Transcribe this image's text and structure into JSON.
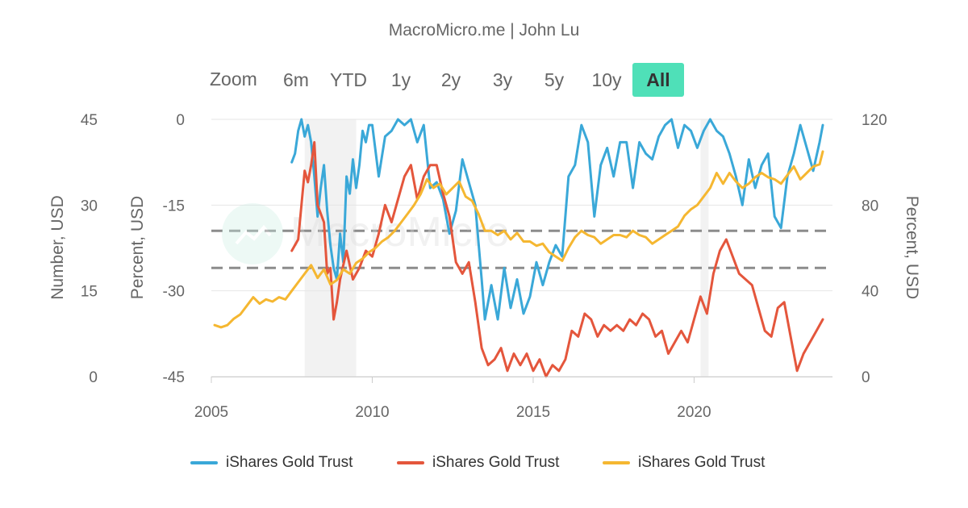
{
  "subtitle": "MacroMicro.me | John Lu",
  "watermark": "MacroMicro",
  "range_selector": {
    "label": "Zoom",
    "buttons": [
      "6m",
      "YTD",
      "1y",
      "2y",
      "3y",
      "5y",
      "10y",
      "All"
    ],
    "selected": "All"
  },
  "colors": {
    "series_blue": "#3aa8d8",
    "series_red": "#e4563c",
    "series_yellow": "#f5b731",
    "selected_button": "#4fe0b8",
    "recession_band": "#f2f2f2",
    "reference_line": "#8c8c8c"
  },
  "chart_data": {
    "type": "line",
    "x_ticks": [
      "2005",
      "2010",
      "2015",
      "2020"
    ],
    "xlim": [
      2005,
      2024.3
    ],
    "axes": {
      "left_outer": {
        "title": "Number, USD",
        "ticks": [
          "45",
          "30",
          "15",
          "0"
        ],
        "ylim": [
          0,
          45
        ]
      },
      "left_inner": {
        "title": "Percent, USD",
        "ticks": [
          "0",
          "-15",
          "-30",
          "-45"
        ],
        "ylim": [
          -45,
          0
        ]
      },
      "right": {
        "title": "Percent, USD",
        "ticks": [
          "120",
          "80",
          "40",
          "0"
        ],
        "ylim": [
          0,
          120
        ]
      }
    },
    "shaded_periods": [
      [
        2007.9,
        2009.5
      ],
      [
        2020.2,
        2020.45
      ]
    ],
    "reference_lines": [
      {
        "axis": "left_inner",
        "value": -19.5,
        "style": "dashed"
      },
      {
        "axis": "left_inner",
        "value": -26,
        "style": "dashed"
      }
    ],
    "series": [
      {
        "name": "iShares Gold Trust",
        "axis": "left_inner",
        "color": "#3aa8d8",
        "x": [
          2007.5,
          2007.6,
          2007.7,
          2007.8,
          2007.9,
          2008.0,
          2008.1,
          2008.2,
          2008.3,
          2008.4,
          2008.5,
          2008.6,
          2008.7,
          2008.8,
          2008.9,
          2009.0,
          2009.1,
          2009.2,
          2009.3,
          2009.4,
          2009.5,
          2009.6,
          2009.7,
          2009.8,
          2009.9,
          2010.0,
          2010.2,
          2010.4,
          2010.6,
          2010.8,
          2011.0,
          2011.2,
          2011.4,
          2011.6,
          2011.8,
          2012.0,
          2012.2,
          2012.4,
          2012.6,
          2012.8,
          2013.0,
          2013.2,
          2013.4,
          2013.5,
          2013.7,
          2013.9,
          2014.1,
          2014.3,
          2014.5,
          2014.7,
          2014.9,
          2015.1,
          2015.3,
          2015.5,
          2015.7,
          2015.9,
          2016.1,
          2016.3,
          2016.5,
          2016.7,
          2016.9,
          2017.1,
          2017.3,
          2017.5,
          2017.7,
          2017.9,
          2018.1,
          2018.3,
          2018.5,
          2018.7,
          2018.9,
          2019.1,
          2019.3,
          2019.5,
          2019.7,
          2019.9,
          2020.1,
          2020.3,
          2020.5,
          2020.7,
          2020.9,
          2021.1,
          2021.3,
          2021.5,
          2021.7,
          2021.9,
          2022.1,
          2022.3,
          2022.5,
          2022.7,
          2022.9,
          2023.1,
          2023.3,
          2023.5,
          2023.7,
          2023.9,
          2024.0
        ],
        "values": [
          -7.5,
          -6,
          -2,
          0,
          -3,
          -1,
          -4,
          -10,
          -17,
          -12,
          -8,
          -16,
          -22,
          -26,
          -28,
          -20,
          -25,
          -10,
          -13,
          -7,
          -12,
          -8,
          -2,
          -4,
          -1,
          -1,
          -10,
          -3,
          -2,
          0,
          -1,
          0,
          -4,
          -1,
          -12,
          -11,
          -14,
          -20,
          -16,
          -7,
          -11,
          -15,
          -28,
          -35,
          -29,
          -35,
          -26,
          -33,
          -28,
          -34,
          -31,
          -25,
          -29,
          -25,
          -22,
          -24,
          -10,
          -8,
          -1,
          -4,
          -17,
          -8,
          -5,
          -10,
          -4,
          -4,
          -12,
          -4,
          -6,
          -7,
          -3,
          -1,
          0,
          -5,
          -1,
          -2,
          -5,
          -2,
          0,
          -2,
          -3,
          -6,
          -10,
          -15,
          -7,
          -12,
          -8,
          -6,
          -17,
          -19,
          -10,
          -6,
          -1,
          -5,
          -9,
          -4,
          -1
        ]
      },
      {
        "name": "iShares Gold Trust",
        "axis": "left_outer",
        "color": "#e4563c",
        "x": [
          2007.5,
          2007.7,
          2007.9,
          2008.0,
          2008.1,
          2008.2,
          2008.3,
          2008.5,
          2008.6,
          2008.7,
          2008.8,
          2008.9,
          2009.0,
          2009.2,
          2009.4,
          2009.6,
          2009.8,
          2010.0,
          2010.2,
          2010.4,
          2010.6,
          2010.8,
          2011.0,
          2011.2,
          2011.4,
          2011.6,
          2011.8,
          2012.0,
          2012.2,
          2012.4,
          2012.6,
          2012.8,
          2013.0,
          2013.2,
          2013.4,
          2013.6,
          2013.8,
          2014.0,
          2014.2,
          2014.4,
          2014.6,
          2014.8,
          2015.0,
          2015.2,
          2015.4,
          2015.6,
          2015.8,
          2016.0,
          2016.2,
          2016.4,
          2016.6,
          2016.8,
          2017.0,
          2017.2,
          2017.4,
          2017.6,
          2017.8,
          2018.0,
          2018.2,
          2018.4,
          2018.6,
          2018.8,
          2019.0,
          2019.2,
          2019.4,
          2019.6,
          2019.8,
          2020.0,
          2020.2,
          2020.4,
          2020.6,
          2020.8,
          2021.0,
          2021.2,
          2021.4,
          2021.6,
          2021.8,
          2022.0,
          2022.2,
          2022.4,
          2022.6,
          2022.8,
          2023.0,
          2023.2,
          2023.4,
          2023.6,
          2023.8,
          2024.0
        ],
        "values": [
          22,
          24,
          36,
          34,
          37,
          41,
          30,
          27,
          18,
          19,
          10,
          13,
          17,
          22,
          17,
          19,
          22,
          21,
          25,
          30,
          27,
          31,
          35,
          37,
          31,
          35,
          37,
          37,
          32,
          28,
          20,
          18,
          20,
          13,
          5,
          2,
          3,
          5,
          1,
          4,
          2,
          4,
          1,
          3,
          0,
          2,
          1,
          3,
          8,
          7,
          11,
          10,
          7,
          9,
          8,
          9,
          8,
          10,
          9,
          11,
          10,
          7,
          8,
          4,
          6,
          8,
          6,
          10,
          14,
          11,
          18,
          22,
          24,
          21,
          18,
          17,
          16,
          12,
          8,
          7,
          12,
          13,
          7,
          1,
          4,
          6,
          8,
          10
        ]
      },
      {
        "name": "iShares Gold Trust",
        "axis": "right",
        "color": "#f5b731",
        "x": [
          2005.1,
          2005.3,
          2005.5,
          2005.7,
          2005.9,
          2006.1,
          2006.3,
          2006.5,
          2006.7,
          2006.9,
          2007.1,
          2007.3,
          2007.5,
          2007.7,
          2007.9,
          2008.1,
          2008.3,
          2008.5,
          2008.7,
          2008.9,
          2009.1,
          2009.3,
          2009.5,
          2009.7,
          2009.9,
          2010.1,
          2010.3,
          2010.5,
          2010.7,
          2010.9,
          2011.1,
          2011.3,
          2011.5,
          2011.7,
          2011.9,
          2012.1,
          2012.3,
          2012.5,
          2012.7,
          2012.9,
          2013.1,
          2013.3,
          2013.5,
          2013.7,
          2013.9,
          2014.1,
          2014.3,
          2014.5,
          2014.7,
          2014.9,
          2015.1,
          2015.3,
          2015.5,
          2015.7,
          2015.9,
          2016.1,
          2016.3,
          2016.5,
          2016.7,
          2016.9,
          2017.1,
          2017.3,
          2017.5,
          2017.7,
          2017.9,
          2018.1,
          2018.3,
          2018.5,
          2018.7,
          2018.9,
          2019.1,
          2019.3,
          2019.5,
          2019.7,
          2019.9,
          2020.1,
          2020.3,
          2020.5,
          2020.7,
          2020.9,
          2021.1,
          2021.3,
          2021.5,
          2021.7,
          2021.9,
          2022.1,
          2022.3,
          2022.5,
          2022.7,
          2022.9,
          2023.1,
          2023.3,
          2023.5,
          2023.7,
          2023.9,
          2024.0
        ],
        "values": [
          24,
          23,
          24,
          27,
          29,
          33,
          37,
          34,
          36,
          35,
          37,
          36,
          40,
          44,
          48,
          52,
          46,
          50,
          43,
          45,
          50,
          48,
          53,
          55,
          58,
          60,
          63,
          65,
          68,
          72,
          76,
          80,
          85,
          92,
          88,
          90,
          85,
          88,
          91,
          84,
          82,
          76,
          68,
          68,
          66,
          68,
          64,
          67,
          63,
          63,
          61,
          62,
          58,
          56,
          54,
          60,
          65,
          68,
          66,
          65,
          62,
          64,
          66,
          66,
          65,
          68,
          66,
          65,
          62,
          64,
          66,
          68,
          70,
          75,
          78,
          80,
          84,
          88,
          95,
          90,
          95,
          91,
          88,
          90,
          93,
          95,
          93,
          92,
          90,
          94,
          98,
          92,
          95,
          98,
          99,
          105
        ]
      }
    ],
    "legend": {
      "placement": "bottom-center",
      "entries": [
        "iShares Gold Trust",
        "iShares Gold Trust",
        "iShares Gold Trust"
      ]
    }
  }
}
